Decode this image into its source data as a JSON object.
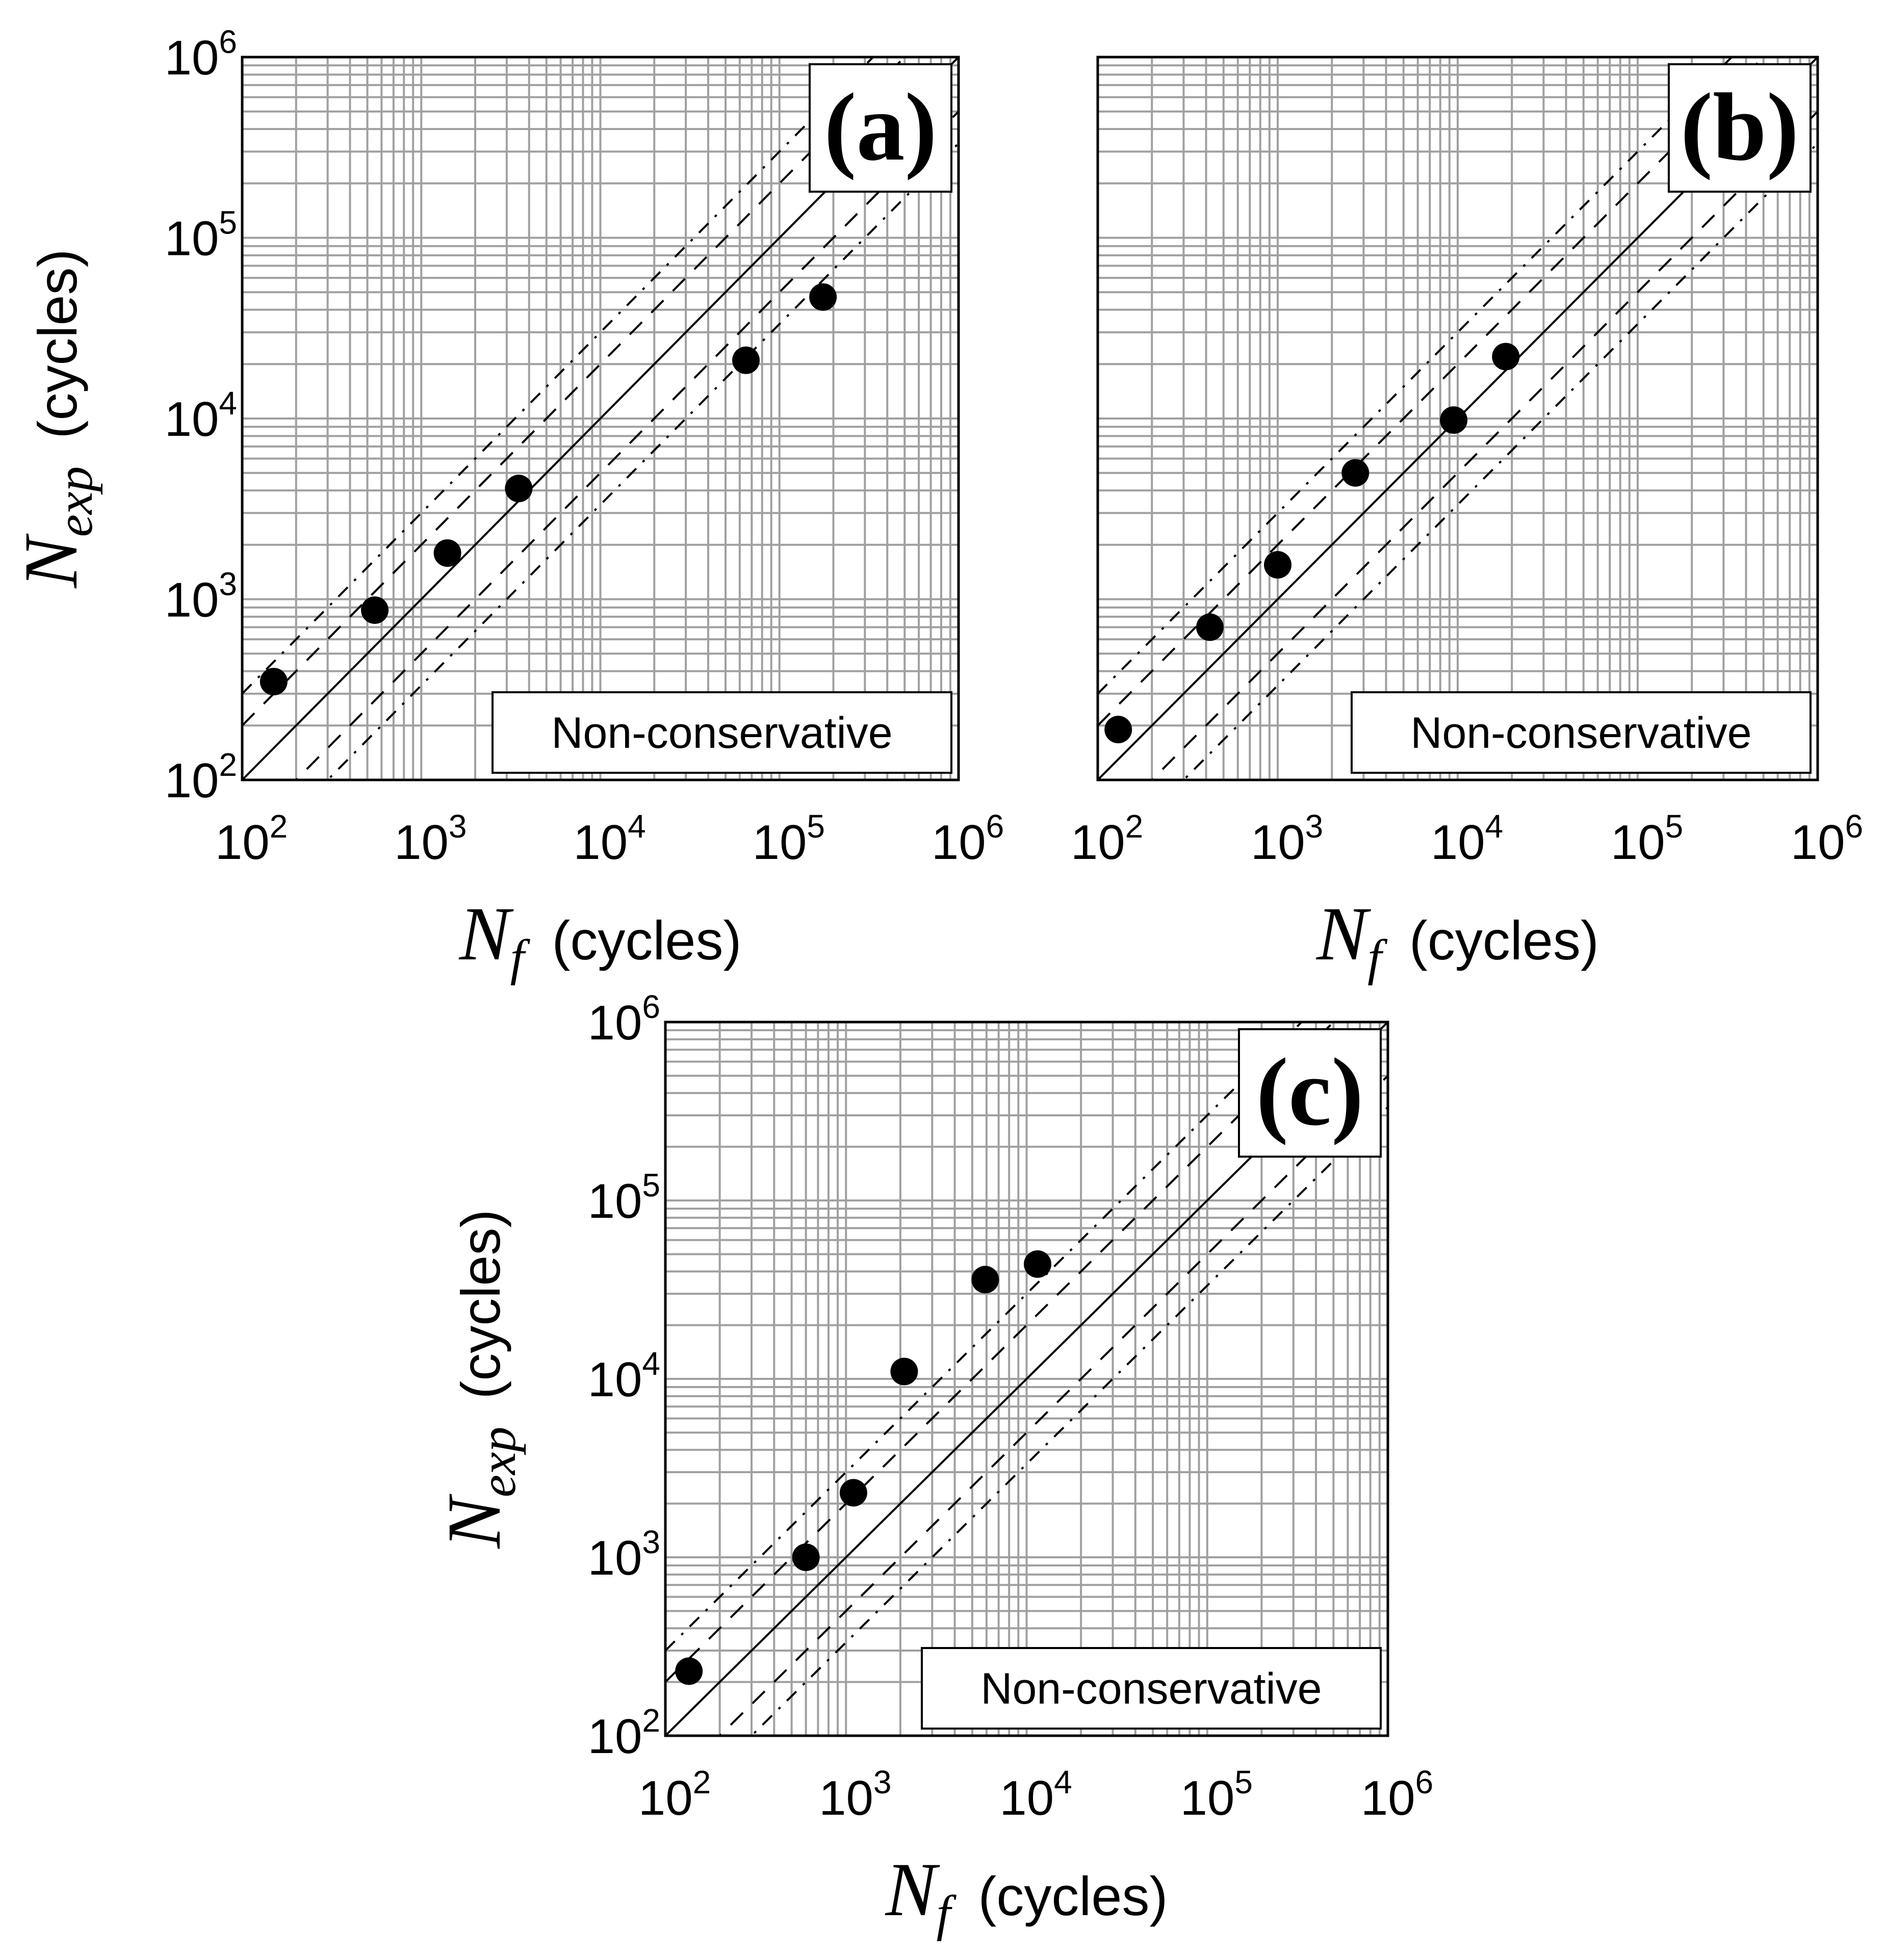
{
  "figure": {
    "background": "#ffffff",
    "grid_color": "#a0a0a0",
    "line_color": "#000000",
    "marker_color": "#000000"
  },
  "chart_data": [
    {
      "type": "scatter",
      "panel": "(a)",
      "xlabel_symbol": "N",
      "xlabel_sub": "f",
      "xlabel_unit": "(cycles)",
      "ylabel_symbol": "N",
      "ylabel_sub": "exp",
      "ylabel_unit": "(cycles)",
      "xscale": "log",
      "yscale": "log",
      "xlim": [
        100,
        1000000
      ],
      "ylim": [
        100,
        1000000
      ],
      "tick_base": "10",
      "tick_exponents": [
        "2",
        "3",
        "4",
        "5",
        "6"
      ],
      "grid": true,
      "annotation": "Non-conservative",
      "reference_lines": [
        {
          "name": "perfect agreement",
          "style": "solid",
          "factor": 1
        },
        {
          "name": "factor of 2 band",
          "style": "dashed",
          "factor": 2
        },
        {
          "name": "factor of 3 band",
          "style": "dash-dot",
          "factor": 3
        }
      ],
      "points": [
        {
          "x": 150,
          "y": 350
        },
        {
          "x": 550,
          "y": 870
        },
        {
          "x": 1400,
          "y": 1800
        },
        {
          "x": 3500,
          "y": 4100
        },
        {
          "x": 65000,
          "y": 21000
        },
        {
          "x": 175000,
          "y": 47000
        }
      ]
    },
    {
      "type": "scatter",
      "panel": "(b)",
      "xlabel_symbol": "N",
      "xlabel_sub": "f",
      "xlabel_unit": "(cycles)",
      "xscale": "log",
      "yscale": "log",
      "xlim": [
        100,
        1000000
      ],
      "ylim": [
        100,
        1000000
      ],
      "tick_base": "10",
      "tick_exponents": [
        "2",
        "3",
        "4",
        "5",
        "6"
      ],
      "grid": true,
      "annotation": "Non-conservative",
      "reference_lines": [
        {
          "name": "perfect agreement",
          "style": "solid",
          "factor": 1
        },
        {
          "name": "factor of 2 band",
          "style": "dashed",
          "factor": 2
        },
        {
          "name": "factor of 3 band",
          "style": "dash-dot",
          "factor": 3
        }
      ],
      "points": [
        {
          "x": 130,
          "y": 190
        },
        {
          "x": 420,
          "y": 700
        },
        {
          "x": 1000,
          "y": 1550
        },
        {
          "x": 2700,
          "y": 5000
        },
        {
          "x": 9500,
          "y": 9800
        },
        {
          "x": 18500,
          "y": 22000
        }
      ]
    },
    {
      "type": "scatter",
      "panel": "(c)",
      "xlabel_symbol": "N",
      "xlabel_sub": "f",
      "xlabel_unit": "(cycles)",
      "ylabel_symbol": "N",
      "ylabel_sub": "exp",
      "ylabel_unit": "(cycles)",
      "xscale": "log",
      "yscale": "log",
      "xlim": [
        100,
        1000000
      ],
      "ylim": [
        100,
        1000000
      ],
      "tick_base": "10",
      "tick_exponents": [
        "2",
        "3",
        "4",
        "5",
        "6"
      ],
      "grid": true,
      "annotation": "Non-conservative",
      "reference_lines": [
        {
          "name": "perfect agreement",
          "style": "solid",
          "factor": 1
        },
        {
          "name": "factor of 2 band",
          "style": "dashed",
          "factor": 2
        },
        {
          "name": "factor of 3 band",
          "style": "dash-dot",
          "factor": 3
        }
      ],
      "points": [
        {
          "x": 135,
          "y": 230
        },
        {
          "x": 600,
          "y": 1000
        },
        {
          "x": 1100,
          "y": 2300
        },
        {
          "x": 2100,
          "y": 11000
        },
        {
          "x": 5900,
          "y": 36000
        },
        {
          "x": 11500,
          "y": 44000
        }
      ]
    }
  ]
}
